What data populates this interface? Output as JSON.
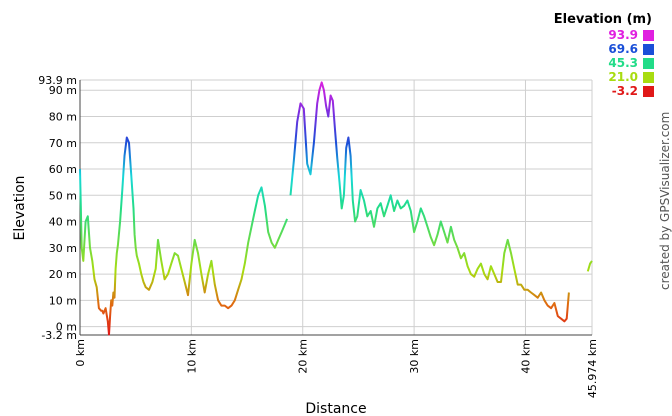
{
  "chart_data": {
    "type": "line",
    "xlabel": "Distance",
    "ylabel": "Elevation",
    "xlim": [
      0,
      45.974
    ],
    "ylim": [
      -3.2,
      93.9
    ],
    "grid": true,
    "x_tick_labels": [
      "0 km",
      "10 km",
      "20 km",
      "30 km",
      "40 km",
      "45.974 km"
    ],
    "x_tick_values": [
      0,
      10,
      20,
      30,
      40,
      45.974
    ],
    "y_tick_labels": [
      "-3.2 m",
      "0 m",
      "10 m",
      "20 m",
      "30 m",
      "40 m",
      "50 m",
      "60 m",
      "70 m",
      "80 m",
      "90 m",
      "93.9 m"
    ],
    "y_tick_values": [
      -3.2,
      0,
      10,
      20,
      30,
      40,
      50,
      60,
      70,
      80,
      90,
      93.9
    ],
    "legend": {
      "title": "Elevation (m)",
      "placement": "top-right",
      "entries": [
        {
          "label": "93.9",
          "color": "#e020e0"
        },
        {
          "label": "69.6",
          "color": "#1a4fd8"
        },
        {
          "label": "45.3",
          "color": "#22dc88"
        },
        {
          "label": "21.0",
          "color": "#a8dc10"
        },
        {
          "label": "-3.2",
          "color": "#e01818"
        }
      ]
    },
    "segments": [
      {
        "x": [
          0,
          0.15,
          0.3,
          0.5,
          0.7,
          0.9,
          1.1,
          1.3,
          1.5,
          1.7,
          1.9,
          2.0,
          2.1,
          2.3,
          2.5,
          2.6,
          2.7,
          2.8,
          2.9,
          3.0,
          3.1,
          3.2,
          3.3,
          3.4,
          3.6,
          3.8,
          4.0,
          4.2,
          4.4,
          4.6,
          4.8,
          4.9,
          5.0,
          5.1,
          5.3,
          5.5,
          5.7,
          5.9,
          6.2,
          6.5,
          6.8,
          7.0,
          7.3,
          7.6,
          7.9,
          8.2,
          8.5,
          8.8,
          9.1,
          9.4,
          9.7,
          10.0,
          10.3,
          10.6,
          10.9,
          11.2,
          11.5,
          11.8,
          12.1,
          12.4,
          12.7,
          13.0,
          13.3,
          13.6,
          13.9,
          14.2,
          14.5,
          14.8,
          15.1,
          15.4,
          15.7,
          16.0,
          16.3,
          16.6,
          16.9,
          17.2,
          17.5,
          17.8,
          18.1,
          18.4,
          18.6
        ],
        "y": [
          60,
          30,
          25,
          40,
          42,
          30,
          25,
          18,
          15,
          7,
          6,
          6,
          5,
          7,
          2,
          -3,
          4,
          10,
          8,
          13,
          11,
          22,
          28,
          31,
          40,
          52,
          65,
          72,
          70,
          58,
          45,
          35,
          30,
          27,
          24,
          20,
          17,
          15,
          14,
          17,
          22,
          33,
          25,
          18,
          20,
          24,
          28,
          27,
          22,
          17,
          12,
          24,
          33,
          28,
          20,
          13,
          20,
          25,
          16,
          10,
          8,
          8,
          7,
          8,
          10,
          14,
          18,
          24,
          32,
          38,
          44,
          50,
          53,
          46,
          36,
          32,
          30,
          33,
          36,
          39,
          41
        ]
      },
      {
        "x": [
          18.9,
          19.2,
          19.5,
          19.8,
          20.1,
          20.4,
          20.7,
          21.0,
          21.3,
          21.5,
          21.7,
          21.9,
          22.1,
          22.3,
          22.5,
          22.7,
          22.9,
          23.1,
          23.3,
          23.5,
          23.7,
          23.9,
          24.1,
          24.3,
          24.5,
          24.7,
          24.9,
          25.2,
          25.5,
          25.8,
          26.1,
          26.4,
          26.7,
          27.0,
          27.3,
          27.6,
          27.9,
          28.2,
          28.5,
          28.8,
          29.1,
          29.4,
          29.7,
          30.0,
          30.3,
          30.6,
          30.9,
          31.2,
          31.5,
          31.8,
          32.1,
          32.4,
          32.7,
          33.0,
          33.3,
          33.6,
          33.9,
          34.2,
          34.5,
          34.8,
          35.1,
          35.4,
          35.7,
          36.0,
          36.3,
          36.6,
          36.9,
          37.2,
          37.5,
          37.8,
          38.1,
          38.4,
          38.7,
          39.0,
          39.3,
          39.6,
          39.9,
          40.2,
          40.5,
          40.8,
          41.1,
          41.4,
          41.7,
          42.0,
          42.3,
          42.6,
          42.9,
          43.2,
          43.5,
          43.7,
          43.9
        ],
        "y": [
          50,
          63,
          78,
          85,
          83,
          62,
          58,
          70,
          85,
          90,
          93,
          90,
          84,
          80,
          88,
          86,
          75,
          64,
          55,
          45,
          50,
          68,
          72,
          65,
          48,
          40,
          42,
          52,
          48,
          42,
          44,
          38,
          45,
          47,
          42,
          46,
          50,
          44,
          48,
          45,
          46,
          48,
          44,
          36,
          40,
          45,
          42,
          38,
          34,
          31,
          35,
          40,
          36,
          32,
          38,
          33,
          30,
          26,
          28,
          23,
          20,
          19,
          22,
          24,
          20,
          18,
          23,
          20,
          17,
          17,
          28,
          33,
          28,
          22,
          16,
          16,
          14,
          14,
          13,
          12,
          11,
          13,
          10,
          8,
          7,
          9,
          4,
          3,
          2,
          3,
          13
        ]
      },
      {
        "x": [
          45.6,
          45.8,
          45.974
        ],
        "y": [
          21,
          24,
          25
        ]
      }
    ]
  },
  "credit": "created by GPSVisualizer.com"
}
